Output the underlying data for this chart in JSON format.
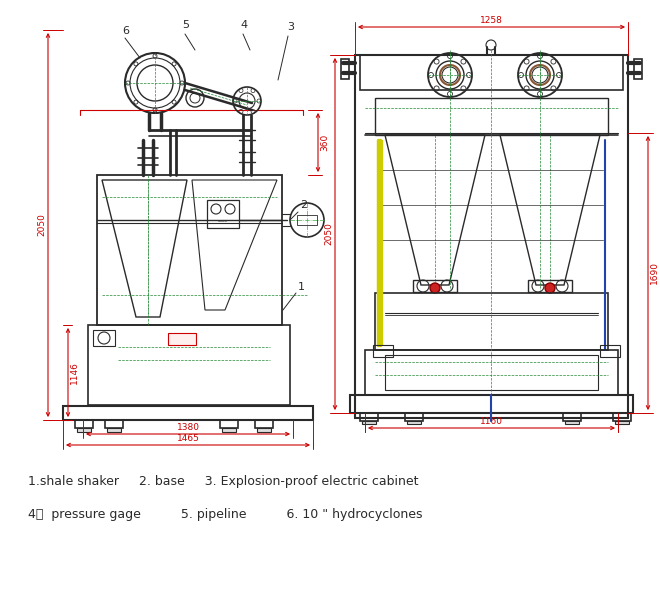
{
  "bg_color": "#ffffff",
  "dk": "#2a2a2a",
  "red": "#cc0000",
  "grn": "#228833",
  "grn2": "#44aa44",
  "blu": "#2244aa",
  "yel": "#aaaa00",
  "brn": "#885533",
  "fig_width": 6.6,
  "fig_height": 5.96,
  "dpi": 100,
  "legend_line1": "1.shale shaker     2. base     3. Explosion-proof electric cabinet",
  "legend_line2": "4，  pressure gage          5. pipeline          6. 10 \" hydrocyclones"
}
